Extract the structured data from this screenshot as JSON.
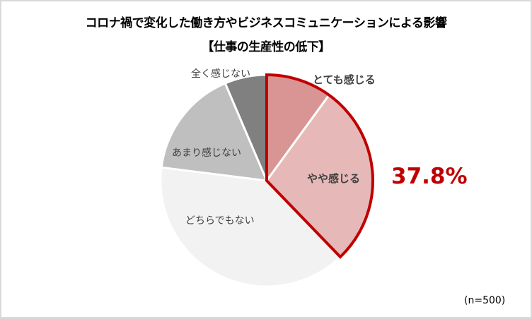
{
  "chart_data": {
    "type": "pie",
    "title": "コロナ禍で変化した働き方やビジネスコミュニケーションによる影響",
    "subtitle": "【仕事の生産性の低下】",
    "categories": [
      "とても感じる",
      "やや感じる",
      "どちらでもない",
      "あまり感じない",
      "全く感じない"
    ],
    "values": [
      10.0,
      27.8,
      39.2,
      16.6,
      6.4
    ],
    "colors": [
      "#d99594",
      "#e6b9b8",
      "#f2f2f2",
      "#bfbfbf",
      "#808080"
    ],
    "highlight": {
      "categories": [
        "とても感じる",
        "やや感じる"
      ],
      "total_label": "37.8%",
      "outline_color": "#c00000"
    },
    "start_angle_deg": 0,
    "direction": "clockwise",
    "note": "(n=500)",
    "legend": "none (labels on slices)"
  },
  "header": {
    "title_line1": "コロナ禍で変化した働き方やビジネスコミュニケーションによる影響",
    "title_line2": "【仕事の生産性の低下】"
  },
  "labels": {
    "very": "とても感じる",
    "somewhat": "やや感じる",
    "neutral": "どちらでもない",
    "not_much": "あまり感じない",
    "not_at_all": "全く感じない"
  },
  "highlight_value": "37.8%",
  "sample_size": "(n=500)"
}
